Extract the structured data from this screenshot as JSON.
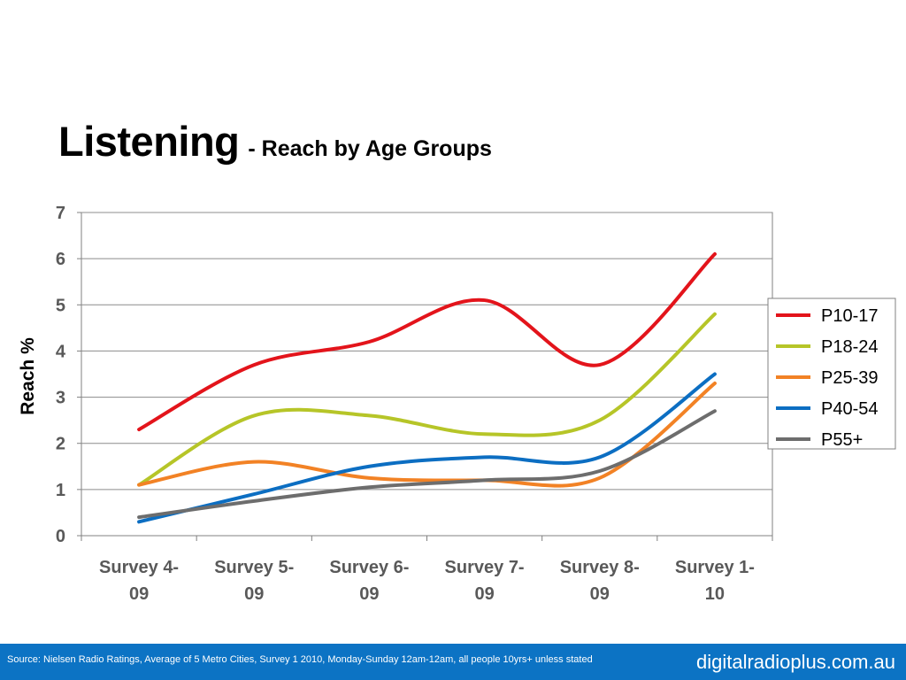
{
  "title": {
    "main": "Listening",
    "sub": "- Reach by Age Groups"
  },
  "footer": {
    "source": "Source: Nielsen Radio Ratings, Average of 5 Metro Cities, Survey 1 2010, Monday-Sunday 12am-12am, all people 10yrs+ unless stated",
    "brand": "digitalradioplus.com.au"
  },
  "chart_data": {
    "type": "line",
    "ylabel": "Reach %",
    "ylim": [
      0,
      7
    ],
    "yticks": [
      0,
      1,
      2,
      3,
      4,
      5,
      6,
      7
    ],
    "grid": true,
    "legend_position": "right",
    "categories": [
      [
        "Survey 4-",
        "09"
      ],
      [
        "Survey 5-",
        "09"
      ],
      [
        "Survey  6-",
        "09"
      ],
      [
        "Survey 7-",
        "09"
      ],
      [
        "Survey 8-",
        "09"
      ],
      [
        "Survey 1-",
        "10"
      ]
    ],
    "series": [
      {
        "name": "P10-17",
        "color": "#e3141b",
        "values": [
          2.3,
          3.7,
          4.2,
          5.1,
          3.7,
          6.1
        ]
      },
      {
        "name": "P18-24",
        "color": "#b6c528",
        "values": [
          1.1,
          2.6,
          2.6,
          2.2,
          2.5,
          4.8
        ]
      },
      {
        "name": "P25-39",
        "color": "#f28225",
        "values": [
          1.1,
          1.6,
          1.25,
          1.2,
          1.25,
          3.3
        ]
      },
      {
        "name": "P40-54",
        "color": "#0c6ec2",
        "values": [
          0.3,
          0.9,
          1.5,
          1.7,
          1.7,
          3.5
        ]
      },
      {
        "name": "P55+",
        "color": "#6d6d6d",
        "values": [
          0.4,
          0.75,
          1.05,
          1.2,
          1.4,
          2.7
        ]
      }
    ]
  }
}
